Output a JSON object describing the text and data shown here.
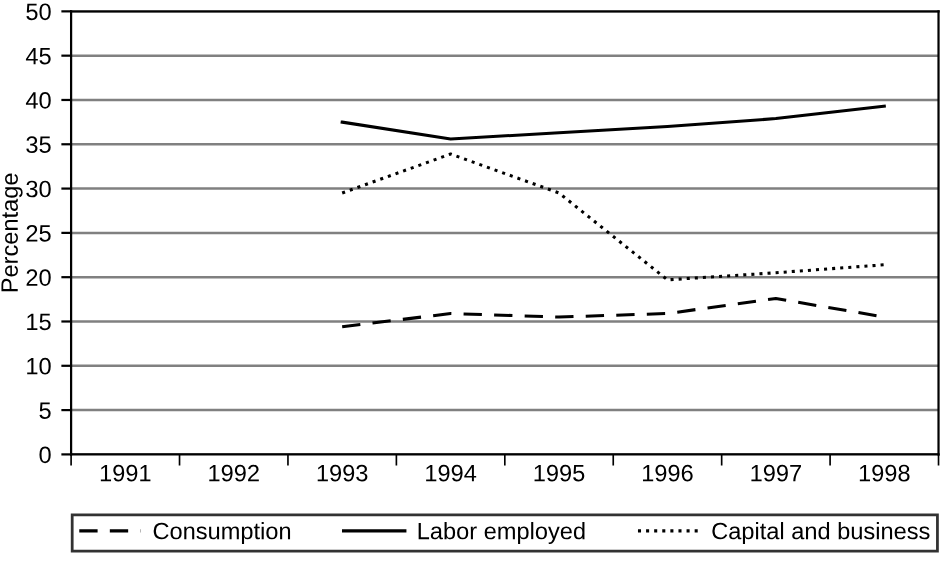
{
  "chart_data": {
    "type": "line",
    "ylabel": "Percentage",
    "categories": [
      "1991",
      "1992",
      "1993",
      "1994",
      "1995",
      "1996",
      "1997",
      "1998"
    ],
    "series": [
      {
        "name": "Consumption",
        "color": "#000000",
        "line_style": "dashed",
        "values": [
          null,
          null,
          14.4,
          15.9,
          15.5,
          15.9,
          17.6,
          15.5
        ]
      },
      {
        "name": "Labor employed",
        "color": "#000000",
        "line_style": "solid",
        "values": [
          null,
          null,
          37.5,
          35.6,
          36.3,
          37.0,
          37.9,
          39.3
        ]
      },
      {
        "name": "Capital and business",
        "color": "#000000",
        "line_style": "dotted",
        "values": [
          null,
          null,
          29.5,
          33.9,
          29.5,
          19.7,
          20.5,
          21.4
        ]
      }
    ],
    "ylim": [
      0,
      50
    ],
    "yticks": [
      0,
      5,
      10,
      15,
      20,
      25,
      30,
      35,
      40,
      45,
      50
    ],
    "grid": "y",
    "legend": "bottom"
  }
}
